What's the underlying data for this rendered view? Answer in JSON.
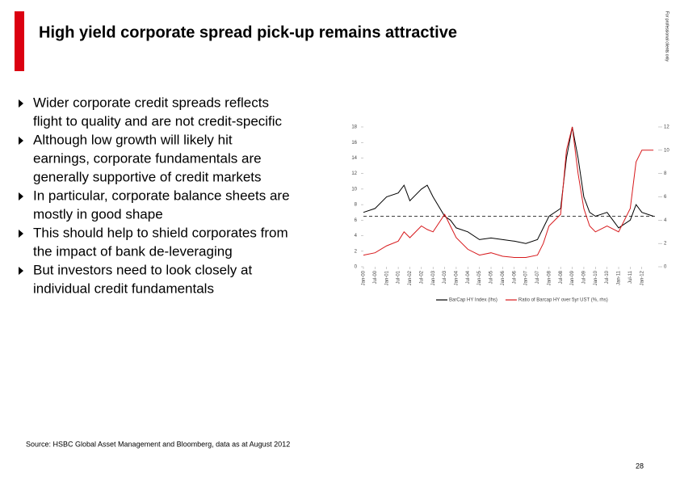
{
  "header": {
    "title": "High yield corporate spread pick-up remains attractive",
    "side_note": "For professional clients only"
  },
  "bullets": [
    [
      "Wider corporate credit spreads reflects",
      "flight to quality and are not credit-specific"
    ],
    [
      "Although low growth will likely hit",
      "earnings, corporate fundamentals are",
      "generally supportive of credit markets"
    ],
    [
      "In particular, corporate balance sheets are",
      "mostly in good shape"
    ],
    [
      "This should help to shield corporates from",
      "the impact of bank de-leveraging"
    ],
    [
      "But investors need to look closely at",
      "individual credit fundamentals"
    ]
  ],
  "source": "Source: HSBC Global Asset Management and Bloomberg, data as at August 2012",
  "page_number": 28,
  "chart_data": {
    "type": "line",
    "x": [
      2000,
      2000.5,
      2001,
      2001.5,
      2001.75,
      2002,
      2002.5,
      2002.75,
      2003,
      2003.5,
      2003.75,
      2004,
      2004.5,
      2005,
      2005.5,
      2006,
      2006.5,
      2007,
      2007.5,
      2007.75,
      2008,
      2008.5,
      2008.75,
      2009,
      2009.25,
      2009.5,
      2009.75,
      2010,
      2010.5,
      2011,
      2011.5,
      2011.75,
      2012,
      2012.5
    ],
    "series": [
      {
        "name": "BarCap HY Index (lhs)",
        "color": "#000000",
        "axis": "y",
        "values": [
          7,
          7.5,
          9,
          9.5,
          10.5,
          8.5,
          10,
          10.5,
          9,
          6.5,
          6,
          5,
          4.5,
          3.5,
          3.7,
          3.5,
          3.3,
          3,
          3.5,
          5,
          6.5,
          7.5,
          14,
          18,
          14,
          9,
          7,
          6.5,
          7,
          5,
          6,
          8,
          7,
          6.5
        ]
      },
      {
        "name": "Ratio of Barcap HY over 5yr UST (%, rhs)",
        "color": "#d7191c",
        "axis": "y2",
        "values": [
          1,
          1.2,
          1.8,
          2.2,
          3,
          2.5,
          3.5,
          3.2,
          3,
          4.5,
          3.5,
          2.5,
          1.5,
          1,
          1.2,
          0.9,
          0.8,
          0.8,
          1,
          2,
          3.5,
          4.5,
          10,
          12,
          8,
          5,
          3.5,
          3,
          3.5,
          3,
          5,
          9,
          10,
          10
        ]
      }
    ],
    "reference_line": 6.5,
    "xlim": [
      2000,
      2012.6
    ],
    "xticks": [
      {
        "value": 2000,
        "label": "Jan-00"
      },
      {
        "value": 2000.5,
        "label": "Jul-00"
      },
      {
        "value": 2001,
        "label": "Jan-01"
      },
      {
        "value": 2001.5,
        "label": "Jul-01"
      },
      {
        "value": 2002,
        "label": "Jan-02"
      },
      {
        "value": 2002.5,
        "label": "Jul-02"
      },
      {
        "value": 2003,
        "label": "Jan-03"
      },
      {
        "value": 2003.5,
        "label": "Jul-03"
      },
      {
        "value": 2004,
        "label": "Jan-04"
      },
      {
        "value": 2004.5,
        "label": "Jul-04"
      },
      {
        "value": 2005,
        "label": "Jan-05"
      },
      {
        "value": 2005.5,
        "label": "Jul-05"
      },
      {
        "value": 2006,
        "label": "Jan-06"
      },
      {
        "value": 2006.5,
        "label": "Jul-06"
      },
      {
        "value": 2007,
        "label": "Jan-07"
      },
      {
        "value": 2007.5,
        "label": "Jul-07"
      },
      {
        "value": 2008,
        "label": "Jan-08"
      },
      {
        "value": 2008.5,
        "label": "Jul-08"
      },
      {
        "value": 2009,
        "label": "Jan-09"
      },
      {
        "value": 2009.5,
        "label": "Jul-09"
      },
      {
        "value": 2010,
        "label": "Jan-10"
      },
      {
        "value": 2010.5,
        "label": "Jul-10"
      },
      {
        "value": 2011,
        "label": "Jan-11"
      },
      {
        "value": 2011.5,
        "label": "Jul-11"
      },
      {
        "value": 2012,
        "label": "Jan-12"
      }
    ],
    "ylim": [
      0,
      18
    ],
    "yticks": [
      0,
      2,
      4,
      6,
      8,
      10,
      12,
      14,
      16,
      18
    ],
    "y2lim": [
      0,
      12
    ],
    "y2ticks": [
      0,
      2,
      4,
      6,
      8,
      10,
      12
    ]
  }
}
